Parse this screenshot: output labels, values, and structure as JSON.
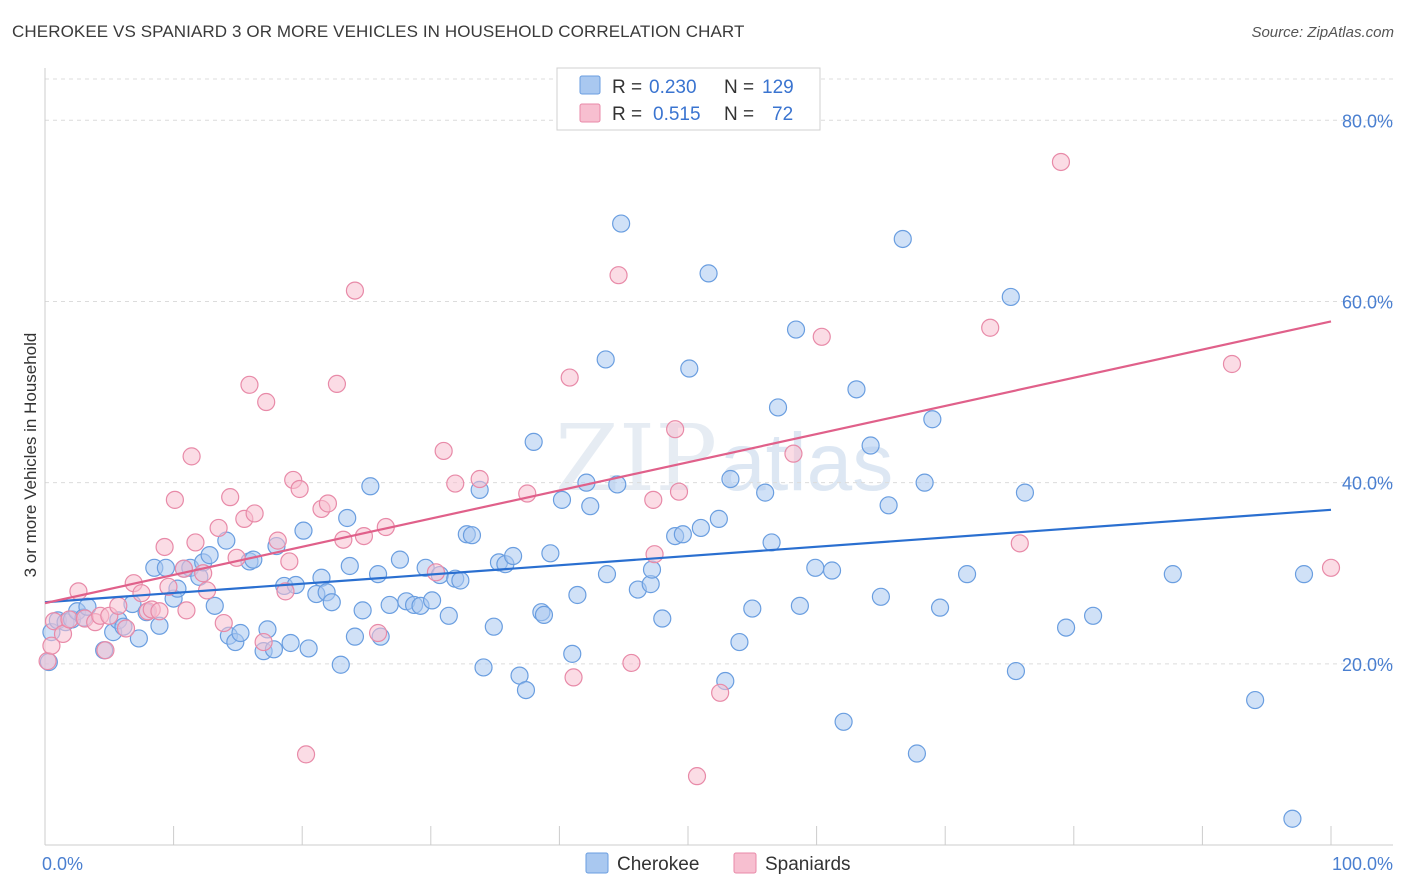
{
  "header": {
    "title": "CHEROKEE VS SPANIARD 3 OR MORE VEHICLES IN HOUSEHOLD CORRELATION CHART",
    "source": "Source: ZipAtlas.com"
  },
  "watermark": {
    "zip": "ZIP",
    "atlas": "atlas"
  },
  "legend": {
    "rows": [
      {
        "r_label": "R =",
        "r_value": "0.230",
        "n_label": "N =",
        "n_value": "129"
      },
      {
        "r_label": "R =",
        "r_value": "0.515",
        "n_label": "N =",
        "n_value": "72"
      }
    ]
  },
  "bottom_legend": {
    "items": [
      "Cherokee",
      "Spaniards"
    ]
  },
  "colors": {
    "cherokee_fill": "#a9c8f0",
    "cherokee_stroke": "#6a9ee0",
    "cherokee_line": "#2a6fd0",
    "spaniards_fill": "#f7bfd0",
    "spaniards_stroke": "#e88aa8",
    "spaniards_line": "#e0608a",
    "grid": "#dcdcdc",
    "tick_text": "#4a7fd0"
  },
  "chart_data": {
    "type": "scatter",
    "title": "CHEROKEE VS SPANIARD 3 OR MORE VEHICLES IN HOUSEHOLD CORRELATION CHART",
    "xlabel": "",
    "ylabel": "3 or more Vehicles in Household",
    "xlim": [
      0,
      100
    ],
    "ylim": [
      0,
      85
    ],
    "x_tick_labels": [
      "0.0%",
      "100.0%"
    ],
    "y_ticks": [
      20,
      40,
      60,
      80
    ],
    "y_tick_labels": [
      "20.0%",
      "40.0%",
      "60.0%",
      "80.0%"
    ],
    "grid": true,
    "legend_position": "top-center",
    "series": [
      {
        "name": "Cherokee",
        "r": 0.23,
        "n": 129,
        "trend": {
          "x": [
            0,
            100
          ],
          "y": [
            26.8,
            37.0
          ]
        },
        "points": [
          [
            0.3,
            20.2
          ],
          [
            0.5,
            23.5
          ],
          [
            1.0,
            24.8
          ],
          [
            1.6,
            24.6
          ],
          [
            2.1,
            24.9
          ],
          [
            2.5,
            25.8
          ],
          [
            3.0,
            25.1
          ],
          [
            3.3,
            26.3
          ],
          [
            4.6,
            21.5
          ],
          [
            5.3,
            23.5
          ],
          [
            5.7,
            24.8
          ],
          [
            6.1,
            24.1
          ],
          [
            6.8,
            26.6
          ],
          [
            7.3,
            22.8
          ],
          [
            7.9,
            25.7
          ],
          [
            8.5,
            30.6
          ],
          [
            8.9,
            24.2
          ],
          [
            9.4,
            30.6
          ],
          [
            10.0,
            27.2
          ],
          [
            10.3,
            28.3
          ],
          [
            10.8,
            30.5
          ],
          [
            11.3,
            30.6
          ],
          [
            12.0,
            29.6
          ],
          [
            12.3,
            31.2
          ],
          [
            12.8,
            32.0
          ],
          [
            13.2,
            26.4
          ],
          [
            14.1,
            33.6
          ],
          [
            14.3,
            23.1
          ],
          [
            14.8,
            22.4
          ],
          [
            15.2,
            23.4
          ],
          [
            15.9,
            31.3
          ],
          [
            16.2,
            31.5
          ],
          [
            17.0,
            21.4
          ],
          [
            17.3,
            23.8
          ],
          [
            17.8,
            21.6
          ],
          [
            18.0,
            33.0
          ],
          [
            18.6,
            28.6
          ],
          [
            19.1,
            22.3
          ],
          [
            19.5,
            28.7
          ],
          [
            20.1,
            34.7
          ],
          [
            20.5,
            21.7
          ],
          [
            21.1,
            27.7
          ],
          [
            21.5,
            29.5
          ],
          [
            21.9,
            27.9
          ],
          [
            22.3,
            26.8
          ],
          [
            23.0,
            19.9
          ],
          [
            23.5,
            36.1
          ],
          [
            23.7,
            30.8
          ],
          [
            24.1,
            23.0
          ],
          [
            24.7,
            25.9
          ],
          [
            25.3,
            39.6
          ],
          [
            25.9,
            29.9
          ],
          [
            26.1,
            23.0
          ],
          [
            26.8,
            26.5
          ],
          [
            27.6,
            31.5
          ],
          [
            28.1,
            26.9
          ],
          [
            28.7,
            26.5
          ],
          [
            29.2,
            26.4
          ],
          [
            29.6,
            30.6
          ],
          [
            30.1,
            27.0
          ],
          [
            30.7,
            29.8
          ],
          [
            31.4,
            25.3
          ],
          [
            31.9,
            29.4
          ],
          [
            32.3,
            29.2
          ],
          [
            32.8,
            34.3
          ],
          [
            33.2,
            34.2
          ],
          [
            33.8,
            39.2
          ],
          [
            34.1,
            19.6
          ],
          [
            34.9,
            24.1
          ],
          [
            35.3,
            31.2
          ],
          [
            35.8,
            31.0
          ],
          [
            36.4,
            31.9
          ],
          [
            36.9,
            18.7
          ],
          [
            37.4,
            17.1
          ],
          [
            38.0,
            44.5
          ],
          [
            38.6,
            25.7
          ],
          [
            38.8,
            25.4
          ],
          [
            39.3,
            32.2
          ],
          [
            40.2,
            38.1
          ],
          [
            41.0,
            21.1
          ],
          [
            41.4,
            27.6
          ],
          [
            42.1,
            40.0
          ],
          [
            42.4,
            37.4
          ],
          [
            43.6,
            53.6
          ],
          [
            43.7,
            29.9
          ],
          [
            44.5,
            39.8
          ],
          [
            44.8,
            68.6
          ],
          [
            46.1,
            28.2
          ],
          [
            47.1,
            28.8
          ],
          [
            47.2,
            30.4
          ],
          [
            48.0,
            25.0
          ],
          [
            49.0,
            34.1
          ],
          [
            49.6,
            34.3
          ],
          [
            50.1,
            52.6
          ],
          [
            51.0,
            35.0
          ],
          [
            51.6,
            63.1
          ],
          [
            52.4,
            36.0
          ],
          [
            52.9,
            18.1
          ],
          [
            53.3,
            40.4
          ],
          [
            54.0,
            22.4
          ],
          [
            55.0,
            26.1
          ],
          [
            56.0,
            38.9
          ],
          [
            56.5,
            33.4
          ],
          [
            57.0,
            48.3
          ],
          [
            58.4,
            56.9
          ],
          [
            58.7,
            26.4
          ],
          [
            59.9,
            30.6
          ],
          [
            61.2,
            30.3
          ],
          [
            62.1,
            13.6
          ],
          [
            63.1,
            50.3
          ],
          [
            64.2,
            44.1
          ],
          [
            65.0,
            27.4
          ],
          [
            65.6,
            37.5
          ],
          [
            66.7,
            66.9
          ],
          [
            67.8,
            10.1
          ],
          [
            68.4,
            40.0
          ],
          [
            69.0,
            47.0
          ],
          [
            69.6,
            26.2
          ],
          [
            71.7,
            29.9
          ],
          [
            75.1,
            60.5
          ],
          [
            75.5,
            19.2
          ],
          [
            76.2,
            38.9
          ],
          [
            79.4,
            24.0
          ],
          [
            81.5,
            25.3
          ],
          [
            87.7,
            29.9
          ],
          [
            94.1,
            16.0
          ],
          [
            97.0,
            2.9
          ],
          [
            97.9,
            29.9
          ]
        ]
      },
      {
        "name": "Spaniards",
        "r": 0.515,
        "n": 72,
        "trend": {
          "x": [
            0,
            100
          ],
          "y": [
            26.7,
            57.8
          ]
        },
        "points": [
          [
            0.2,
            20.3
          ],
          [
            0.5,
            22.0
          ],
          [
            0.7,
            24.7
          ],
          [
            1.4,
            23.3
          ],
          [
            1.9,
            24.9
          ],
          [
            2.6,
            28.0
          ],
          [
            3.1,
            25.0
          ],
          [
            3.9,
            24.6
          ],
          [
            4.3,
            25.3
          ],
          [
            4.7,
            21.5
          ],
          [
            5.0,
            25.3
          ],
          [
            5.7,
            26.4
          ],
          [
            6.3,
            23.9
          ],
          [
            6.9,
            28.9
          ],
          [
            7.5,
            27.8
          ],
          [
            8.0,
            25.8
          ],
          [
            8.3,
            26.0
          ],
          [
            8.9,
            25.8
          ],
          [
            9.3,
            32.9
          ],
          [
            9.6,
            28.5
          ],
          [
            10.1,
            38.1
          ],
          [
            10.8,
            30.5
          ],
          [
            11.0,
            25.9
          ],
          [
            11.4,
            42.9
          ],
          [
            11.7,
            33.4
          ],
          [
            12.3,
            30.0
          ],
          [
            12.6,
            28.1
          ],
          [
            13.5,
            35.0
          ],
          [
            13.9,
            24.5
          ],
          [
            14.4,
            38.4
          ],
          [
            14.9,
            31.7
          ],
          [
            15.5,
            36.0
          ],
          [
            15.9,
            50.8
          ],
          [
            16.3,
            36.6
          ],
          [
            17.0,
            22.4
          ],
          [
            17.2,
            48.9
          ],
          [
            18.1,
            33.6
          ],
          [
            18.7,
            28.0
          ],
          [
            19.0,
            31.3
          ],
          [
            19.3,
            40.3
          ],
          [
            19.8,
            39.3
          ],
          [
            20.3,
            10.0
          ],
          [
            21.5,
            37.1
          ],
          [
            22.0,
            37.7
          ],
          [
            22.7,
            50.9
          ],
          [
            23.2,
            33.7
          ],
          [
            24.1,
            61.2
          ],
          [
            24.8,
            34.1
          ],
          [
            25.9,
            23.4
          ],
          [
            26.5,
            35.1
          ],
          [
            30.4,
            30.1
          ],
          [
            31.0,
            43.5
          ],
          [
            31.9,
            39.9
          ],
          [
            33.8,
            40.4
          ],
          [
            37.5,
            38.8
          ],
          [
            40.8,
            51.6
          ],
          [
            41.1,
            18.5
          ],
          [
            44.6,
            62.9
          ],
          [
            45.6,
            20.1
          ],
          [
            47.3,
            38.1
          ],
          [
            47.4,
            32.1
          ],
          [
            49.0,
            45.9
          ],
          [
            49.3,
            39.0
          ],
          [
            50.7,
            7.6
          ],
          [
            52.5,
            16.8
          ],
          [
            58.2,
            43.2
          ],
          [
            60.4,
            56.1
          ],
          [
            73.5,
            57.1
          ],
          [
            75.8,
            33.3
          ],
          [
            79.0,
            75.4
          ],
          [
            92.3,
            53.1
          ],
          [
            100.0,
            30.6
          ]
        ]
      }
    ]
  }
}
